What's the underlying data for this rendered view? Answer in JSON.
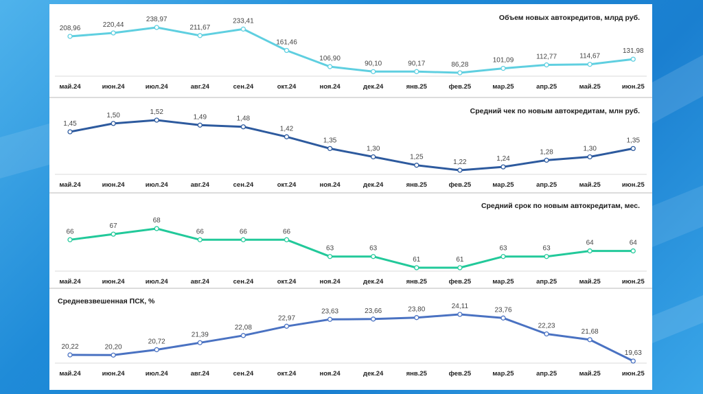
{
  "months": [
    "май.24",
    "июн.24",
    "июл.24",
    "авг.24",
    "сен.24",
    "окт.24",
    "ноя.24",
    "дек.24",
    "янв.25",
    "фев.25",
    "мар.25",
    "апр.25",
    "май.25",
    "июн.25"
  ],
  "chart_data": [
    {
      "type": "line",
      "title": "Объем новых автокредитов, млрд руб.",
      "values": [
        208.96,
        220.44,
        238.97,
        211.67,
        233.41,
        161.46,
        106.9,
        90.1,
        90.17,
        86.28,
        101.09,
        112.77,
        114.67,
        131.98
      ],
      "labels": [
        "208,96",
        "220,44",
        "238,97",
        "211,67",
        "233,41",
        "161,46",
        "106,90",
        "90,10",
        "90,17",
        "86,28",
        "101,09",
        "112,77",
        "114,67",
        "131,98"
      ],
      "color": "#5fcfe0"
    },
    {
      "type": "line",
      "title": "Средний чек по новым автокредитам, млн руб.",
      "values": [
        1.45,
        1.5,
        1.52,
        1.49,
        1.48,
        1.42,
        1.35,
        1.3,
        1.25,
        1.22,
        1.24,
        1.28,
        1.3,
        1.35
      ],
      "labels": [
        "1,45",
        "1,50",
        "1,52",
        "1,49",
        "1,48",
        "1,42",
        "1,35",
        "1,30",
        "1,25",
        "1,22",
        "1,24",
        "1,28",
        "1,30",
        "1,35"
      ],
      "color": "#2d5a9e"
    },
    {
      "type": "line",
      "title": "Средний срок по новым автокредитам, мес.",
      "values": [
        66,
        67,
        68,
        66,
        66,
        66,
        63,
        63,
        61,
        61,
        63,
        63,
        64,
        64
      ],
      "labels": [
        "66",
        "67",
        "68",
        "66",
        "66",
        "66",
        "63",
        "63",
        "61",
        "61",
        "63",
        "63",
        "64",
        "64"
      ],
      "color": "#22c99a"
    },
    {
      "type": "line",
      "title": "Средневзвешенная ПСК, %",
      "values": [
        20.22,
        20.2,
        20.72,
        21.39,
        22.08,
        22.97,
        23.63,
        23.66,
        23.8,
        24.11,
        23.76,
        22.23,
        21.68,
        19.63
      ],
      "labels": [
        "20,22",
        "20,20",
        "20,72",
        "21,39",
        "22,08",
        "22,97",
        "23,63",
        "23,66",
        "23,80",
        "24,11",
        "23,76",
        "22,23",
        "21,68",
        "19,63"
      ],
      "color": "#4a72c2"
    }
  ]
}
